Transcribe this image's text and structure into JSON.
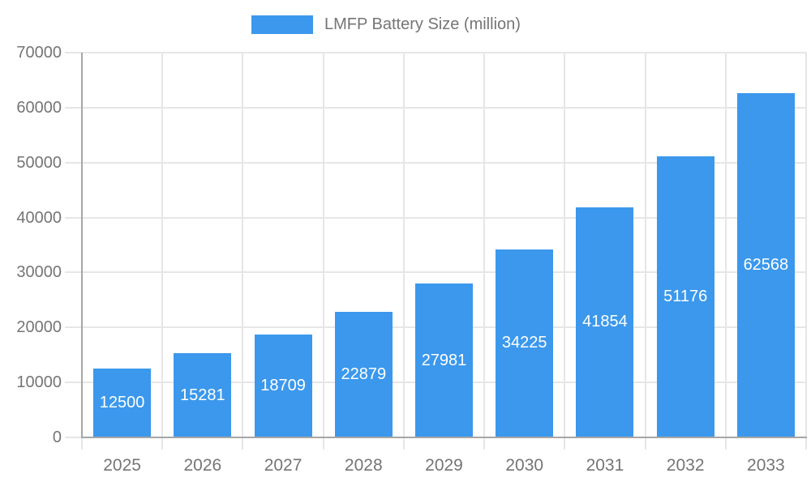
{
  "legend": {
    "label": "LMFP Battery Size (million)",
    "swatch_color": "#3b98ec"
  },
  "chart_data": {
    "type": "bar",
    "title": "LMFP Battery Size (million)",
    "xlabel": "",
    "ylabel": "",
    "categories": [
      "2025",
      "2026",
      "2027",
      "2028",
      "2029",
      "2030",
      "2031",
      "2032",
      "2033"
    ],
    "values": [
      12500,
      15281,
      18709,
      22879,
      27981,
      34225,
      41854,
      51176,
      62568
    ],
    "value_labels": [
      "12500",
      "15281",
      "18709",
      "22879",
      "27981",
      "34225",
      "41854",
      "51176",
      "62568"
    ],
    "ylim": [
      0,
      70000
    ],
    "ytick_step": 10000,
    "ytick_labels": [
      "0",
      "10000",
      "20000",
      "30000",
      "40000",
      "50000",
      "60000",
      "70000"
    ],
    "grid": true,
    "legend_position": "top-center",
    "colors": {
      "bar": "#3b98ec",
      "value_label_text": "#ffffff",
      "axis_text": "#757575",
      "gridline": "#e6e6e6",
      "axis_line": "#a6a6a6",
      "background": "#ffffff"
    }
  }
}
